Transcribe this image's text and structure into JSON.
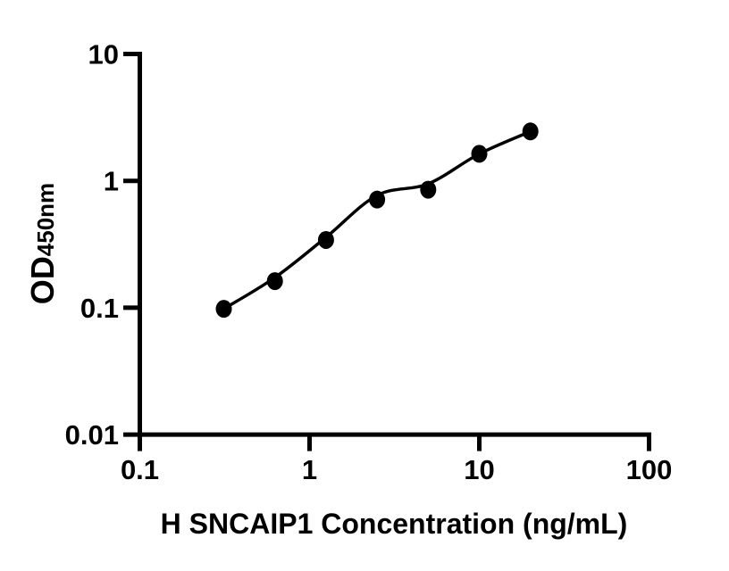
{
  "figure": {
    "background": "#ffffff",
    "ink_color": "#000000"
  },
  "chart_data": {
    "type": "scatter",
    "title": "",
    "xlabel": "H SNCAIP1 Concentration (ng/mL)",
    "ylabel_main": "OD",
    "ylabel_sub": "450nm",
    "x_scale": "log10",
    "y_scale": "log10",
    "xlim": [
      0.1,
      100
    ],
    "ylim": [
      0.01,
      10
    ],
    "grid": false,
    "legend": "none",
    "x_ticks": [
      {
        "value": 0.1,
        "label": "0.1"
      },
      {
        "value": 1,
        "label": "1"
      },
      {
        "value": 10,
        "label": "10"
      },
      {
        "value": 100,
        "label": "100"
      }
    ],
    "y_ticks": [
      {
        "value": 10,
        "label": "10"
      },
      {
        "value": 1,
        "label": "1"
      },
      {
        "value": 0.1,
        "label": "0.1"
      },
      {
        "value": 0.01,
        "label": "0.01"
      }
    ],
    "series": [
      {
        "name": "standard-curve",
        "marker": "filled-circle",
        "marker_color": "#000000",
        "line_color": "#000000",
        "points": [
          {
            "x": 0.3125,
            "y": 0.098
          },
          {
            "x": 0.625,
            "y": 0.162
          },
          {
            "x": 1.25,
            "y": 0.342
          },
          {
            "x": 2.5,
            "y": 0.712
          },
          {
            "x": 5,
            "y": 0.852
          },
          {
            "x": 10,
            "y": 1.633
          },
          {
            "x": 20,
            "y": 2.452
          }
        ]
      }
    ],
    "fit_curve": [
      {
        "x": 0.3125,
        "y": 0.098
      },
      {
        "x": 0.625,
        "y": 0.173
      },
      {
        "x": 1.25,
        "y": 0.359
      },
      {
        "x": 2.5,
        "y": 0.768
      },
      {
        "x": 5,
        "y": 0.948
      },
      {
        "x": 10,
        "y": 1.632
      },
      {
        "x": 20,
        "y": 2.449
      }
    ]
  }
}
